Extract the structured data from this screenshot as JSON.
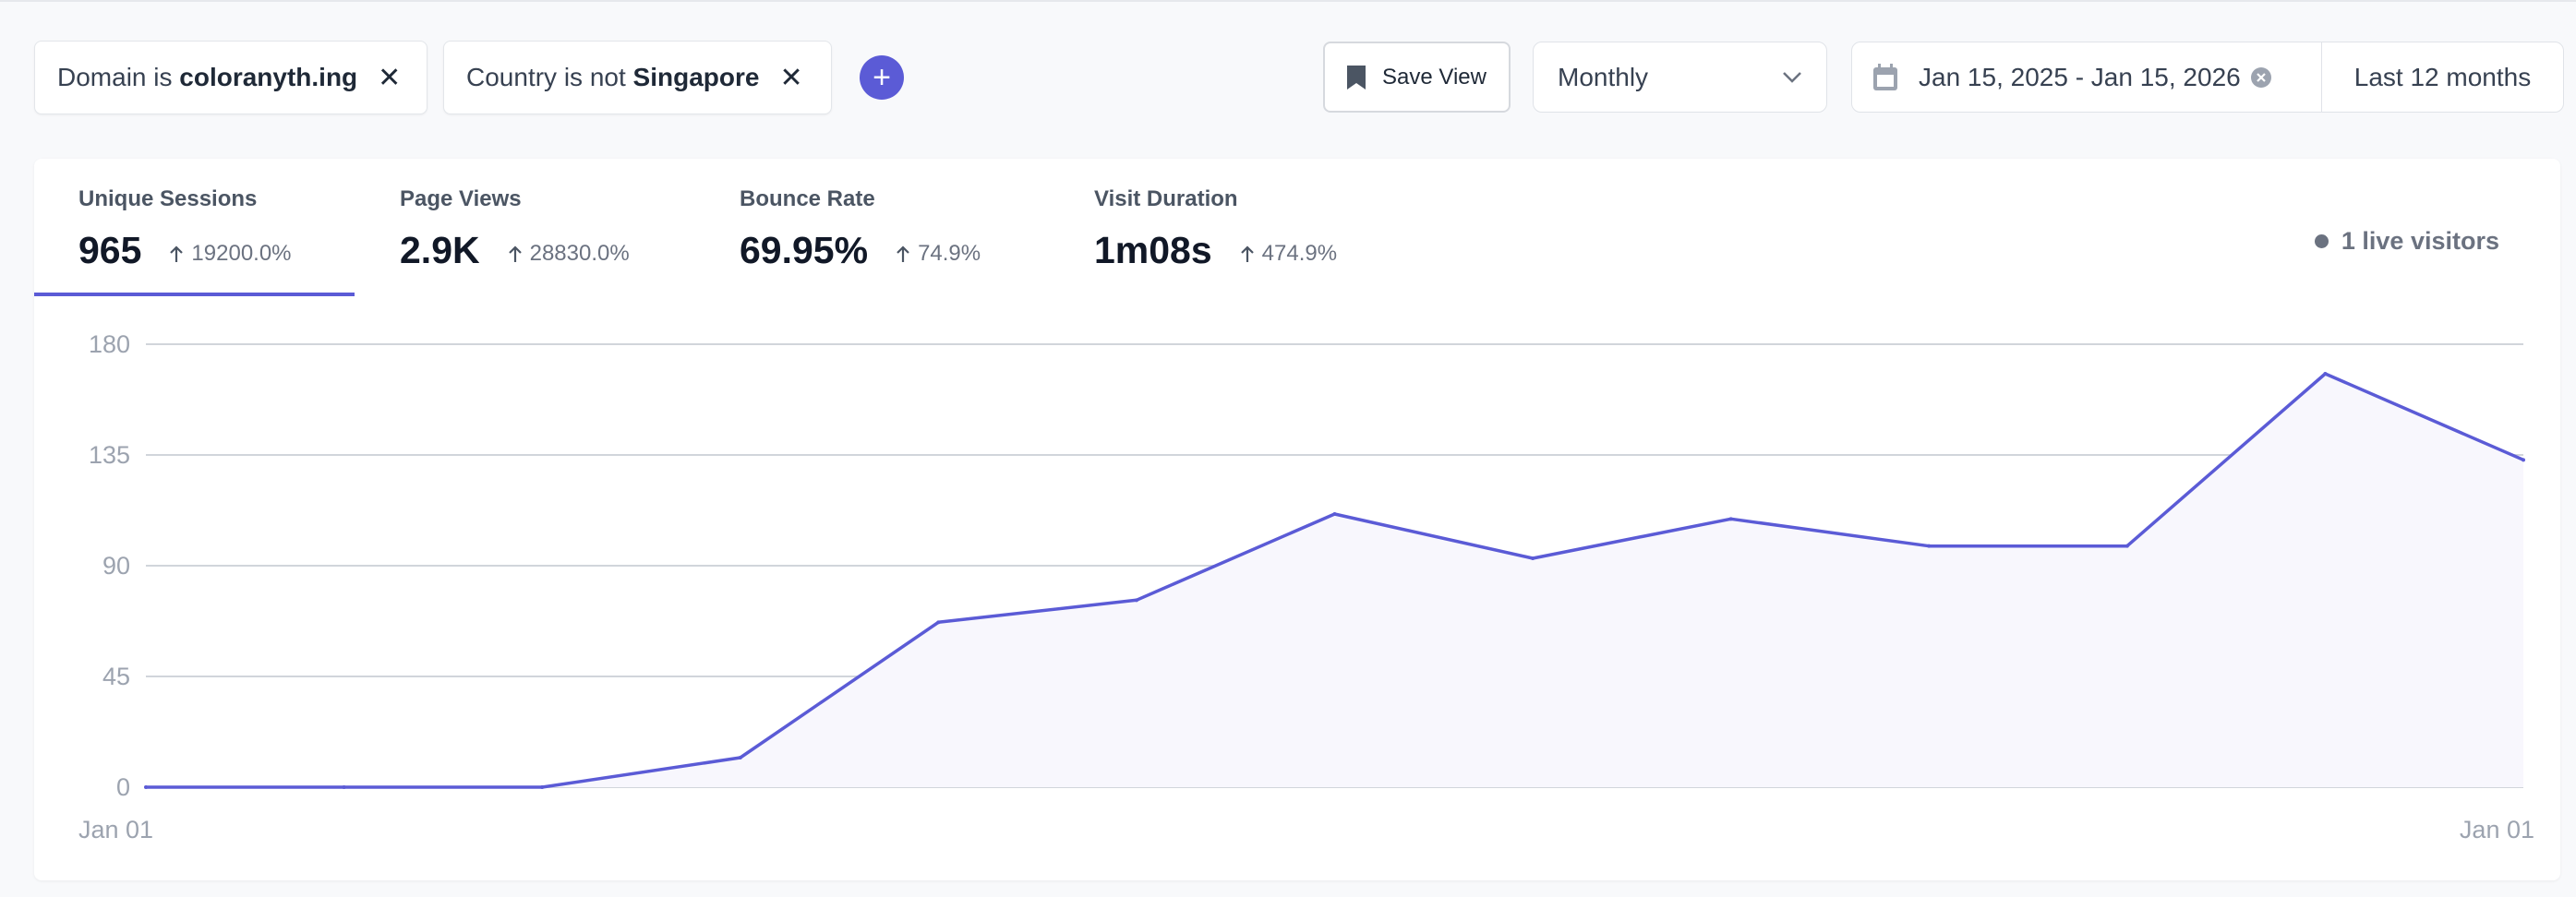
{
  "filters": [
    {
      "prefix": "Domain is",
      "value": "coloranyth.ing"
    },
    {
      "prefix": "Country is not",
      "value": "Singapore"
    }
  ],
  "toolbar": {
    "add_label": "+",
    "save_view_label": "Save View",
    "interval_value": "Monthly",
    "date_range": "Jan 15, 2025 - Jan 15, 2026",
    "preset": "Last 12 months"
  },
  "metrics": [
    {
      "label": "Unique Sessions",
      "value": "965",
      "change": "19200.0%"
    },
    {
      "label": "Page Views",
      "value": "2.9K",
      "change": "28830.0%"
    },
    {
      "label": "Bounce Rate",
      "value": "69.95%",
      "change": "74.9%"
    },
    {
      "label": "Visit Duration",
      "value": "1m08s",
      "change": "474.9%"
    }
  ],
  "live_visitors": "1 live visitors",
  "colors": {
    "accent": "#5b5bd6",
    "area_fill": "#f8f7fd",
    "grid": "#d1d5db"
  },
  "icons": {
    "add": "plus-icon",
    "save": "bookmark-icon",
    "dropdown": "chevron-down-icon",
    "calendar": "calendar-icon",
    "clear": "close-circle-icon",
    "remove": "close-icon",
    "trend": "arrow-up-icon"
  },
  "chart_data": {
    "type": "area",
    "metric": "Unique Sessions",
    "ylim": [
      0,
      180
    ],
    "yticks": [
      0,
      45,
      90,
      135,
      180
    ],
    "x_tick_labels": [
      "Jan 01",
      "Jan 01"
    ],
    "values": [
      0,
      0,
      0,
      12,
      67,
      76,
      111,
      93,
      109,
      98,
      98,
      168,
      133
    ],
    "grid": true
  }
}
